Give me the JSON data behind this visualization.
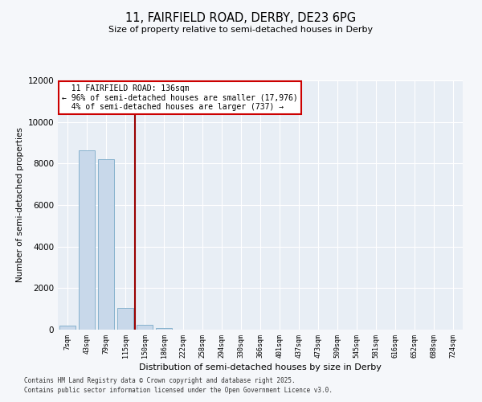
{
  "title_line1": "11, FAIRFIELD ROAD, DERBY, DE23 6PG",
  "title_line2": "Size of property relative to semi-detached houses in Derby",
  "xlabel": "Distribution of semi-detached houses by size in Derby",
  "ylabel": "Number of semi-detached properties",
  "annotation_title": "11 FAIRFIELD ROAD: 136sqm",
  "annotation_line2": "← 96% of semi-detached houses are smaller (17,976)",
  "annotation_line3": "4% of semi-detached houses are larger (737) →",
  "footer_line1": "Contains HM Land Registry data © Crown copyright and database right 2025.",
  "footer_line2": "Contains public sector information licensed under the Open Government Licence v3.0.",
  "bin_labels": [
    "7sqm",
    "43sqm",
    "79sqm",
    "115sqm",
    "150sqm",
    "186sqm",
    "222sqm",
    "258sqm",
    "294sqm",
    "330sqm",
    "366sqm",
    "401sqm",
    "437sqm",
    "473sqm",
    "509sqm",
    "545sqm",
    "581sqm",
    "616sqm",
    "652sqm",
    "688sqm",
    "724sqm"
  ],
  "bin_values": [
    200,
    8650,
    8200,
    1050,
    250,
    80,
    15,
    2,
    0,
    0,
    0,
    0,
    0,
    0,
    0,
    0,
    0,
    0,
    0,
    0,
    0
  ],
  "bar_color": "#c8d8ea",
  "bar_edge_color": "#7aaac8",
  "vline_color": "#990000",
  "vline_x": 3.5,
  "ylim": [
    0,
    12000
  ],
  "yticks": [
    0,
    2000,
    4000,
    6000,
    8000,
    10000,
    12000
  ],
  "annotation_box_color": "#ffffff",
  "annotation_box_edge": "#cc0000",
  "bg_color": "#f5f7fa",
  "grid_color": "#ffffff",
  "plot_bg_color": "#e8eef5"
}
